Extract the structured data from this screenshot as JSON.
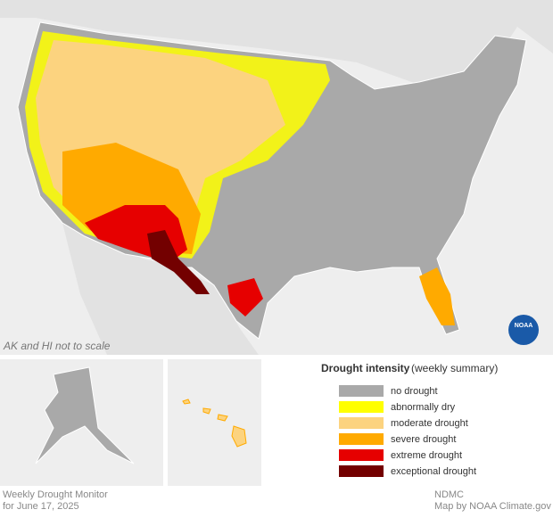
{
  "map": {
    "scale_note": "AK and HI not to scale",
    "logo": "NOAA",
    "legend": {
      "title": "Drought intensity",
      "subtitle": "(weekly summary)",
      "items": [
        {
          "label": "no drought",
          "color": "#a9a9a9"
        },
        {
          "label": "abnormally dry",
          "color": "#ffff00"
        },
        {
          "label": "moderate drought",
          "color": "#fcd37f"
        },
        {
          "label": "severe drought",
          "color": "#ffaa00"
        },
        {
          "label": "extreme drought",
          "color": "#e60000"
        },
        {
          "label": "exceptional drought",
          "color": "#730000"
        }
      ]
    },
    "footer": {
      "product": "Weekly Drought Monitor",
      "date": "for June 17, 2025",
      "source": "NDMC",
      "credit": "Map by NOAA Climate.gov"
    }
  }
}
